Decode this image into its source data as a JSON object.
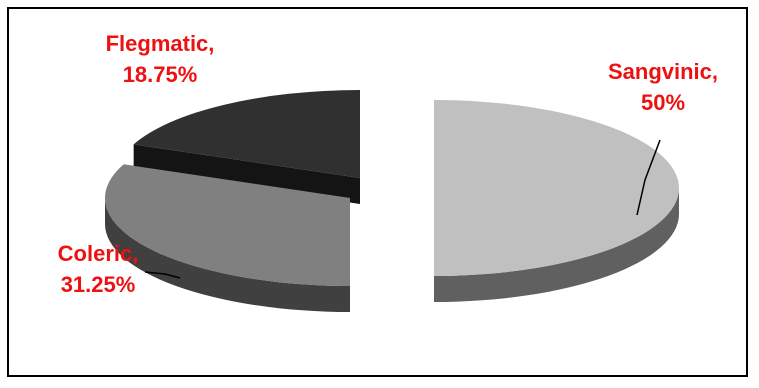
{
  "chart_data": {
    "type": "pie",
    "style": "3d-exploded",
    "slices": [
      {
        "label": "Sangvinic,",
        "pct_label": "50%",
        "value": 50,
        "color": "#c0c0c0",
        "side_color": "#606060"
      },
      {
        "label": "Coleric,",
        "pct_label": "31.25%",
        "value": 31.25,
        "color": "#808080",
        "side_color": "#404040"
      },
      {
        "label": "Flegmatic,",
        "pct_label": "18.75%",
        "value": 18.75,
        "color": "#303030",
        "side_color": "#141414"
      }
    ],
    "label_color": "#ee1111",
    "legend": "none"
  }
}
